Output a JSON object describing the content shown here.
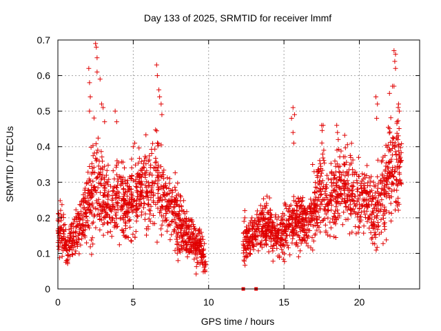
{
  "chart_data": {
    "type": "scatter",
    "title": "Day 133 of 2025, SRMTID for receiver lmmf",
    "xlabel": "GPS time / hours",
    "ylabel": "SRMTID / TECUs",
    "xlim": [
      0,
      24
    ],
    "ylim": [
      0,
      0.7
    ],
    "xticks": [
      0,
      5,
      10,
      15,
      20
    ],
    "xtick_labels": [
      "0",
      "5",
      "10",
      "15",
      "20"
    ],
    "yticks": [
      0,
      0.1,
      0.2,
      0.3,
      0.4,
      0.5,
      0.6,
      0.7
    ],
    "ytick_labels": [
      "0",
      "0.1",
      "0.2",
      "0.3",
      "0.4",
      "0.5",
      "0.6",
      "0.7"
    ],
    "grid": true,
    "marker": "plus",
    "series": [
      {
        "name": "SRMTID",
        "color": "#e00000",
        "segments": [
          {
            "from_hour": 0.0,
            "to_hour": 9.8,
            "envelope": [
              [
                0.0,
                0.17,
                0.05
              ],
              [
                0.3,
                0.15,
                0.05
              ],
              [
                0.6,
                0.11,
                0.03
              ],
              [
                1.0,
                0.15,
                0.04
              ],
              [
                1.5,
                0.18,
                0.05
              ],
              [
                2.0,
                0.24,
                0.08
              ],
              [
                2.5,
                0.28,
                0.12
              ],
              [
                3.0,
                0.27,
                0.08
              ],
              [
                3.5,
                0.23,
                0.06
              ],
              [
                4.0,
                0.26,
                0.08
              ],
              [
                4.5,
                0.24,
                0.07
              ],
              [
                5.0,
                0.25,
                0.07
              ],
              [
                5.5,
                0.28,
                0.07
              ],
              [
                6.0,
                0.29,
                0.08
              ],
              [
                6.5,
                0.33,
                0.1
              ],
              [
                7.0,
                0.25,
                0.07
              ],
              [
                7.5,
                0.24,
                0.06
              ],
              [
                8.0,
                0.18,
                0.06
              ],
              [
                8.5,
                0.16,
                0.05
              ],
              [
                9.0,
                0.13,
                0.04
              ],
              [
                9.5,
                0.12,
                0.04
              ],
              [
                9.8,
                0.07,
                0.03
              ]
            ]
          },
          {
            "from_hour": 12.3,
            "to_hour": 22.8,
            "envelope": [
              [
                12.3,
                0.13,
                0.04
              ],
              [
                13.0,
                0.15,
                0.04
              ],
              [
                13.5,
                0.18,
                0.05
              ],
              [
                14.0,
                0.17,
                0.05
              ],
              [
                14.5,
                0.15,
                0.04
              ],
              [
                15.0,
                0.16,
                0.05
              ],
              [
                15.5,
                0.19,
                0.05
              ],
              [
                16.0,
                0.2,
                0.06
              ],
              [
                16.5,
                0.19,
                0.05
              ],
              [
                17.0,
                0.21,
                0.06
              ],
              [
                17.5,
                0.27,
                0.09
              ],
              [
                18.0,
                0.26,
                0.08
              ],
              [
                18.5,
                0.28,
                0.08
              ],
              [
                19.0,
                0.3,
                0.07
              ],
              [
                19.5,
                0.27,
                0.07
              ],
              [
                20.0,
                0.25,
                0.06
              ],
              [
                20.5,
                0.26,
                0.06
              ],
              [
                21.0,
                0.21,
                0.07
              ],
              [
                21.5,
                0.26,
                0.08
              ],
              [
                22.0,
                0.34,
                0.11
              ],
              [
                22.5,
                0.36,
                0.11
              ],
              [
                22.8,
                0.34,
                0.06
              ]
            ]
          }
        ],
        "outlier_points": [
          [
            2.05,
            0.62
          ],
          [
            2.1,
            0.58
          ],
          [
            2.15,
            0.54
          ],
          [
            2.1,
            0.5
          ],
          [
            2.5,
            0.69
          ],
          [
            2.55,
            0.68
          ],
          [
            2.6,
            0.65
          ],
          [
            2.6,
            0.61
          ],
          [
            2.8,
            0.59
          ],
          [
            2.9,
            0.52
          ],
          [
            3.0,
            0.51
          ],
          [
            3.1,
            0.47
          ],
          [
            3.8,
            0.5
          ],
          [
            3.9,
            0.47
          ],
          [
            6.55,
            0.63
          ],
          [
            6.6,
            0.6
          ],
          [
            6.7,
            0.56
          ],
          [
            6.75,
            0.54
          ],
          [
            6.85,
            0.52
          ],
          [
            6.9,
            0.49
          ],
          [
            5.1,
            0.41
          ],
          [
            5.0,
            0.4
          ],
          [
            9.75,
            0.05
          ],
          [
            9.7,
            0.06
          ],
          [
            15.6,
            0.51
          ],
          [
            15.7,
            0.49
          ],
          [
            15.5,
            0.48
          ],
          [
            15.6,
            0.44
          ],
          [
            15.65,
            0.41
          ],
          [
            17.5,
            0.46
          ],
          [
            17.6,
            0.46
          ],
          [
            18.5,
            0.46
          ],
          [
            18.55,
            0.44
          ],
          [
            18.6,
            0.42
          ],
          [
            21.1,
            0.54
          ],
          [
            21.2,
            0.52
          ],
          [
            21.15,
            0.48
          ],
          [
            22.3,
            0.67
          ],
          [
            22.4,
            0.66
          ],
          [
            22.35,
            0.64
          ],
          [
            22.4,
            0.62
          ],
          [
            22.2,
            0.57
          ],
          [
            22.3,
            0.57
          ],
          [
            22.0,
            0.55
          ],
          [
            22.6,
            0.52
          ],
          [
            22.65,
            0.5
          ],
          [
            22.5,
            0.47
          ],
          [
            16.9,
            0.35
          ],
          [
            17.0,
            0.33
          ],
          [
            12.35,
            0.19
          ],
          [
            12.4,
            0.2
          ],
          [
            12.4,
            0.22
          ]
        ],
        "baseline_points": [
          [
            12.3,
            0.0
          ],
          [
            13.15,
            0.0
          ]
        ]
      }
    ]
  }
}
